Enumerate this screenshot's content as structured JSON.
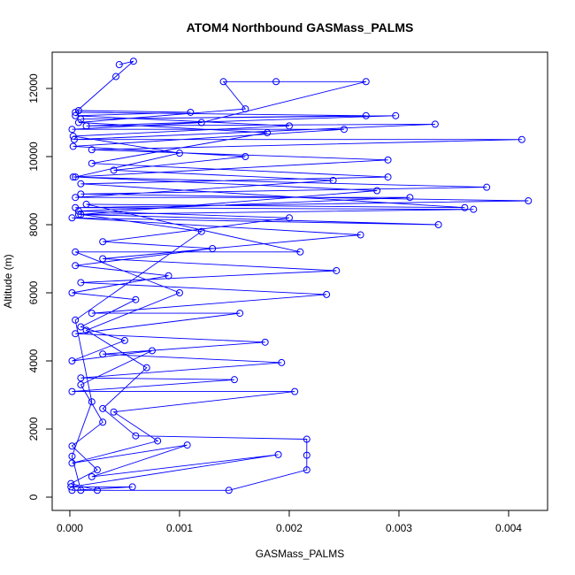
{
  "chart_data": {
    "type": "line",
    "title": "ATOM4 Northbound GASMass_PALMS",
    "x_label": "GASMass_PALMS",
    "y_label": "Altitude (m)",
    "color": "#0000ff",
    "markers": true,
    "xlim": [
      -0.000161,
      0.004355
    ],
    "ylim": [
      -390,
      13065
    ],
    "xticks": [
      {
        "value": 0,
        "label": "0.000"
      },
      {
        "value": 0.001,
        "label": "0.001"
      },
      {
        "value": 0.002,
        "label": "0.002"
      },
      {
        "value": 0.003,
        "label": "0.003"
      },
      {
        "value": 0.004,
        "label": "0.004"
      }
    ],
    "yticks": [
      0,
      2000,
      4000,
      6000,
      8000,
      10000,
      12000
    ],
    "x": [
      0.00045,
      0.00058,
      0.00042,
      5e-05,
      0.0027,
      0.0001,
      0.00297,
      0.00015,
      0.00333,
      4e-05,
      0.00412,
      0.0002,
      0.0029,
      3e-05,
      0.0038,
      0.0001,
      0.00418,
      5e-05,
      0.00368,
      8e-05,
      0.00336,
      2e-05,
      0.00265,
      0.0003,
      0.00243,
      0.0001,
      0.00234,
      0.0002,
      0.00155,
      5e-05,
      0.00178,
      0.0003,
      0.00193,
      0.0001,
      0.0015,
      2e-05,
      0.00205,
      0.0004,
      0.0008,
      2e-05,
      0.00107,
      0.0002,
      0.0019,
      1e-05,
      0.00057,
      2e-05,
      0.00145,
      0.00216,
      0.00216,
      0.00216,
      0.0006,
      0.0003,
      0.0007,
      0.00015,
      0.001,
      5e-05,
      0.0021,
      0.00015,
      0.0036,
      0.0001,
      0.0029,
      0.0002,
      0.0018,
      8e-05,
      0.0016,
      0.0014,
      0.00188,
      0.0027,
      0.0012,
      2e-05,
      0.0025,
      3e-05,
      0.0016,
      0.0004,
      0.0024,
      5e-05,
      0.0031,
      8e-05,
      0.002,
      0.0003,
      0.0013,
      5e-05,
      0.0009,
      2e-05,
      0.0006,
      0.0001,
      0.0005,
      2e-05,
      0.00075,
      0.0001,
      0.0003,
      2e-05,
      0.00025,
      1e-05,
      0.00025,
      0.0001,
      2e-05,
      0.0002,
      5e-05,
      0.0012,
      0.0001,
      0.0028,
      5e-05,
      0.001,
      3e-05,
      0.002,
      5e-05,
      0.0011,
      8e-05
    ],
    "y": [
      12700,
      12800,
      12350,
      11300,
      11200,
      11100,
      11200,
      10900,
      10950,
      10500,
      10500,
      10200,
      9900,
      9400,
      9100,
      8900,
      8700,
      8500,
      8450,
      8300,
      8000,
      8200,
      7700,
      7000,
      6650,
      6300,
      5950,
      5400,
      5400,
      4800,
      4550,
      4200,
      3950,
      3500,
      3450,
      3100,
      3100,
      2500,
      1650,
      1000,
      1530,
      600,
      1250,
      300,
      300,
      200,
      200,
      800,
      1230,
      1700,
      1800,
      2600,
      3800,
      4900,
      6000,
      7200,
      7200,
      8600,
      8500,
      9200,
      9400,
      9800,
      10700,
      11000,
      11400,
      12200,
      12200,
      12200,
      11000,
      10800,
      10800,
      10300,
      10000,
      9600,
      9300,
      8800,
      8800,
      8400,
      8200,
      7500,
      7300,
      6800,
      6500,
      6000,
      5800,
      5000,
      4600,
      4000,
      4300,
      3300,
      2200,
      1500,
      800,
      400,
      200,
      200,
      1200,
      2800,
      5200,
      7800,
      8300,
      9000,
      9400,
      10100,
      10600,
      10900,
      11200,
      11300,
      11350
    ]
  }
}
